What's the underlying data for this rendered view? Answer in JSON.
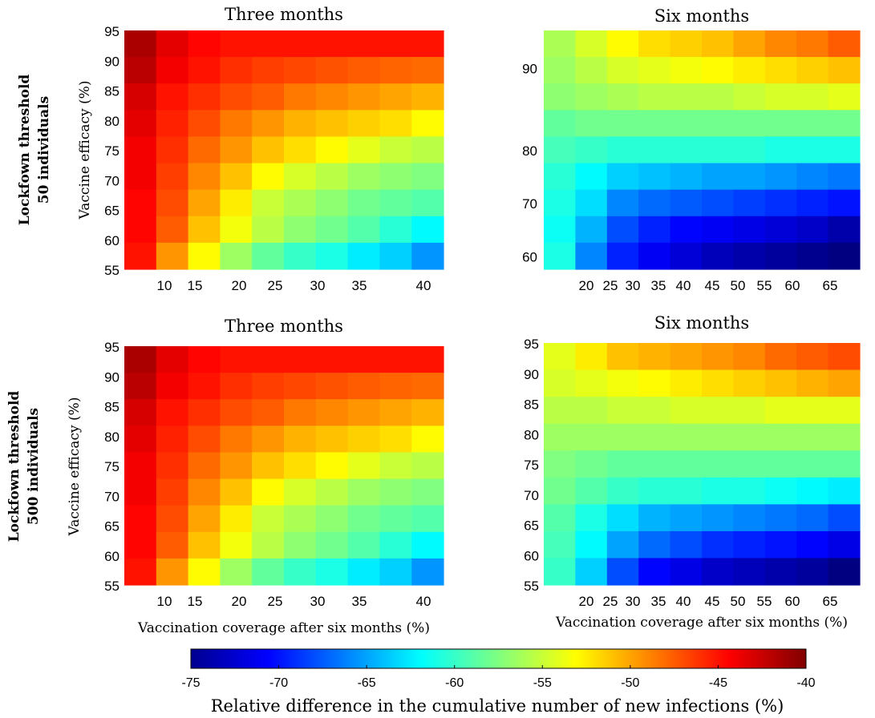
{
  "rows": [
    {
      "label_line1": "Lockfown threshold",
      "label_line2": "50 individuals"
    },
    {
      "label_line1": "Lockfown threshold",
      "label_line2": "500 individuals"
    }
  ],
  "colorbar": {
    "min": -75,
    "max": -40,
    "ticks": [
      -75,
      -70,
      -65,
      -60,
      -55,
      -50,
      -45,
      -40
    ],
    "label": "Relative difference in the cumulative number of new infections (%)",
    "colormap": "jet"
  },
  "chart_data": [
    {
      "type": "heatmap",
      "title": "Three months",
      "ylabel": "Vaccine efficacy (%)",
      "xlabel": "",
      "x_ticks": [
        "10",
        "15",
        "20",
        "25",
        "30",
        "35",
        "40"
      ],
      "y_ticks": [
        "55",
        "60",
        "65",
        "70",
        "75",
        "80",
        "85",
        "90",
        "95"
      ],
      "cols": 10,
      "rows": 9,
      "rows_top_to_bottom": [
        [
          -41.5,
          -43.5,
          -44.5,
          -45.0,
          -45.0,
          -45.0,
          -45.0,
          -45.0,
          -45.0,
          -45.0
        ],
        [
          -42.0,
          -44.0,
          -45.0,
          -46.0,
          -46.5,
          -46.8,
          -47.2,
          -47.5,
          -47.8,
          -48.0
        ],
        [
          -43.0,
          -45.0,
          -46.0,
          -47.0,
          -47.5,
          -48.5,
          -49.0,
          -49.5,
          -50.0,
          -50.5
        ],
        [
          -43.5,
          -45.5,
          -47.0,
          -48.5,
          -49.5,
          -50.5,
          -51.0,
          -51.5,
          -52.0,
          -53.0
        ],
        [
          -44.0,
          -46.0,
          -48.0,
          -49.5,
          -51.0,
          -52.0,
          -53.0,
          -54.0,
          -55.0,
          -55.5
        ],
        [
          -44.0,
          -46.5,
          -49.0,
          -51.0,
          -53.0,
          -54.5,
          -55.5,
          -56.5,
          -57.0,
          -57.5
        ],
        [
          -44.5,
          -47.0,
          -50.0,
          -52.5,
          -55.0,
          -56.0,
          -57.0,
          -58.0,
          -58.5,
          -59.0
        ],
        [
          -44.5,
          -47.5,
          -51.0,
          -53.5,
          -55.5,
          -57.0,
          -58.0,
          -59.0,
          -60.5,
          -62.0
        ],
        [
          -45.0,
          -49.5,
          -53.0,
          -56.5,
          -58.5,
          -60.0,
          -61.0,
          -62.5,
          -63.5,
          -65.5
        ]
      ]
    },
    {
      "type": "heatmap",
      "title": "Six months",
      "ylabel": "",
      "xlabel": "",
      "x_ticks": [
        "20",
        "25",
        "30",
        "35",
        "40",
        "45",
        "50",
        "55",
        "60",
        "65"
      ],
      "y_ticks": [
        "60",
        "70",
        "80",
        "90"
      ],
      "cols": 10,
      "rows": 9,
      "rows_top_to_bottom": [
        [
          -56.0,
          -54.5,
          -53.0,
          -52.0,
          -51.5,
          -51.0,
          -50.0,
          -49.0,
          -48.5,
          -47.5
        ],
        [
          -56.5,
          -55.5,
          -54.5,
          -54.0,
          -53.5,
          -53.0,
          -52.5,
          -52.0,
          -51.5,
          -51.0
        ],
        [
          -57.0,
          -56.5,
          -56.0,
          -55.5,
          -55.5,
          -55.5,
          -55.0,
          -54.5,
          -54.5,
          -54.0
        ],
        [
          -58.5,
          -58.0,
          -58.0,
          -58.0,
          -58.0,
          -58.0,
          -58.0,
          -58.0,
          -58.0,
          -58.0
        ],
        [
          -59.5,
          -60.0,
          -60.5,
          -60.5,
          -60.5,
          -60.5,
          -60.5,
          -61.0,
          -61.0,
          -61.0
        ],
        [
          -60.5,
          -62.0,
          -63.5,
          -64.0,
          -64.5,
          -65.0,
          -65.0,
          -65.5,
          -66.0,
          -66.5
        ],
        [
          -61.0,
          -63.0,
          -66.0,
          -67.0,
          -67.5,
          -68.0,
          -68.5,
          -69.0,
          -69.5,
          -70.0
        ],
        [
          -61.5,
          -64.5,
          -68.0,
          -69.5,
          -70.5,
          -71.0,
          -71.5,
          -72.0,
          -72.5,
          -73.5
        ],
        [
          -61.0,
          -66.0,
          -69.5,
          -71.0,
          -72.0,
          -73.0,
          -73.5,
          -74.0,
          -74.5,
          -75.0
        ]
      ]
    },
    {
      "type": "heatmap",
      "title": "Three months",
      "ylabel": "Vaccine efficacy (%)",
      "xlabel": "Vaccination coverage after six months (%)",
      "x_ticks": [
        "10",
        "15",
        "20",
        "25",
        "30",
        "35",
        "40"
      ],
      "y_ticks": [
        "55",
        "60",
        "65",
        "70",
        "75",
        "80",
        "85",
        "90",
        "95"
      ],
      "cols": 10,
      "rows": 9,
      "rows_top_to_bottom": [
        [
          -41.5,
          -43.5,
          -44.5,
          -45.0,
          -45.0,
          -45.0,
          -45.0,
          -45.0,
          -45.0,
          -45.0
        ],
        [
          -42.0,
          -44.0,
          -45.0,
          -46.0,
          -46.5,
          -46.8,
          -47.2,
          -47.5,
          -47.8,
          -48.0
        ],
        [
          -43.0,
          -45.0,
          -46.0,
          -47.0,
          -47.5,
          -48.5,
          -49.0,
          -49.5,
          -50.0,
          -50.5
        ],
        [
          -43.5,
          -45.5,
          -47.0,
          -48.5,
          -49.5,
          -50.5,
          -51.0,
          -51.5,
          -52.0,
          -53.0
        ],
        [
          -44.0,
          -46.0,
          -48.0,
          -49.5,
          -51.0,
          -52.0,
          -53.0,
          -54.0,
          -55.0,
          -55.5
        ],
        [
          -44.0,
          -46.5,
          -49.0,
          -51.0,
          -53.0,
          -54.5,
          -55.5,
          -56.5,
          -57.0,
          -57.5
        ],
        [
          -44.5,
          -47.0,
          -50.0,
          -52.5,
          -55.0,
          -56.0,
          -57.0,
          -58.0,
          -58.5,
          -59.0
        ],
        [
          -44.5,
          -47.5,
          -51.0,
          -53.5,
          -55.5,
          -57.0,
          -58.0,
          -59.0,
          -60.5,
          -62.0
        ],
        [
          -45.0,
          -49.5,
          -53.0,
          -56.5,
          -58.5,
          -60.0,
          -61.0,
          -62.5,
          -63.5,
          -65.5
        ]
      ]
    },
    {
      "type": "heatmap",
      "title": "Six months",
      "ylabel": "",
      "xlabel": "Vaccination coverage after six months (%)",
      "x_ticks": [
        "20",
        "25",
        "30",
        "35",
        "40",
        "45",
        "50",
        "55",
        "60",
        "65"
      ],
      "y_ticks": [
        "55",
        "60",
        "65",
        "70",
        "75",
        "80",
        "85",
        "90",
        "95"
      ],
      "cols": 10,
      "rows": 9,
      "rows_top_to_bottom": [
        [
          -54.0,
          -52.5,
          -51.0,
          -50.5,
          -50.0,
          -49.5,
          -49.0,
          -48.0,
          -47.5,
          -47.0
        ],
        [
          -54.5,
          -54.0,
          -53.5,
          -53.0,
          -52.5,
          -52.0,
          -51.5,
          -51.0,
          -50.5,
          -50.0
        ],
        [
          -55.5,
          -55.5,
          -55.0,
          -55.0,
          -54.5,
          -54.5,
          -54.5,
          -54.0,
          -54.0,
          -54.0
        ],
        [
          -56.5,
          -56.5,
          -56.5,
          -56.5,
          -56.5,
          -56.5,
          -56.5,
          -56.5,
          -56.5,
          -56.5
        ],
        [
          -57.5,
          -58.0,
          -58.5,
          -58.5,
          -58.5,
          -58.5,
          -58.5,
          -58.5,
          -58.5,
          -58.5
        ],
        [
          -58.0,
          -59.0,
          -60.0,
          -60.5,
          -60.5,
          -61.0,
          -61.0,
          -61.5,
          -62.0,
          -62.5
        ],
        [
          -59.0,
          -61.0,
          -63.0,
          -64.5,
          -65.0,
          -65.5,
          -66.0,
          -66.5,
          -67.0,
          -68.0
        ],
        [
          -59.5,
          -62.0,
          -65.0,
          -67.0,
          -68.0,
          -69.0,
          -69.5,
          -70.0,
          -70.5,
          -71.5
        ],
        [
          -60.0,
          -63.5,
          -68.0,
          -70.5,
          -71.5,
          -72.5,
          -73.0,
          -73.5,
          -74.0,
          -75.0
        ]
      ]
    }
  ]
}
